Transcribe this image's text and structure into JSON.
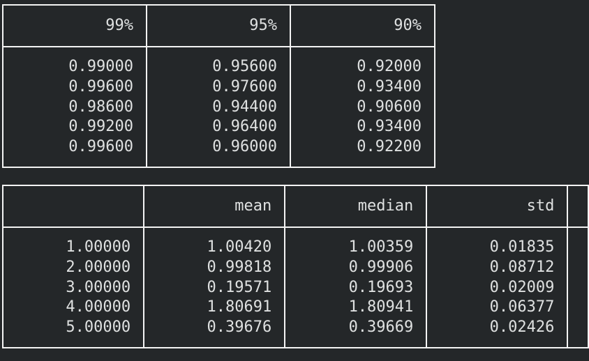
{
  "table1": {
    "headers": [
      "99%",
      "95%",
      "90%"
    ],
    "columns": [
      [
        "0.99000",
        "0.99600",
        "0.98600",
        "0.99200",
        "0.99600"
      ],
      [
        "0.95600",
        "0.97600",
        "0.94400",
        "0.96400",
        "0.96000"
      ],
      [
        "0.92000",
        "0.93400",
        "0.90600",
        "0.93400",
        "0.92200"
      ]
    ]
  },
  "table2": {
    "headers": [
      "",
      "mean",
      "median",
      "std"
    ],
    "columns": [
      [
        "1.00000",
        "2.00000",
        "3.00000",
        "4.00000",
        "5.00000"
      ],
      [
        "1.00420",
        "0.99818",
        "0.19571",
        "1.80691",
        "0.39676"
      ],
      [
        "1.00359",
        "0.99906",
        "0.19693",
        "1.80941",
        "0.39669"
      ],
      [
        "0.01835",
        "0.08712",
        "0.02009",
        "0.06377",
        "0.02426"
      ]
    ]
  }
}
